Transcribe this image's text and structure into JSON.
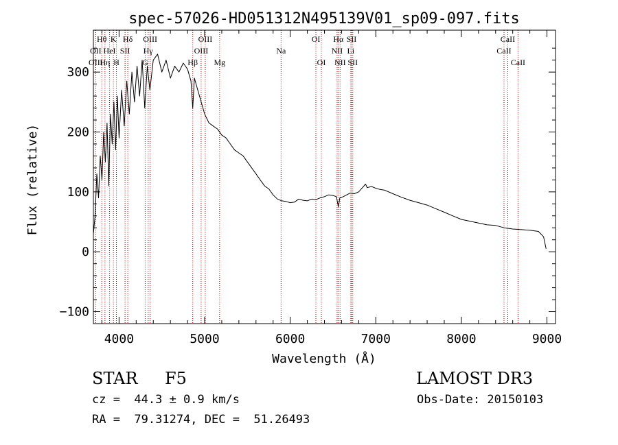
{
  "chart_data": {
    "type": "line",
    "title": "spec-57026-HD051312N495139V01_sp09-097.fits",
    "xlabel": "Wavelength (Å)",
    "ylabel": "Flux (relative)",
    "xlim": [
      3700,
      9100
    ],
    "ylim": [
      -120,
      370
    ],
    "xticks": [
      4000,
      5000,
      6000,
      7000,
      8000,
      9000
    ],
    "xtick_labels": [
      "4000",
      "5000",
      "6000",
      "7000",
      "8000",
      "9000"
    ],
    "yticks": [
      -100,
      0,
      100,
      200,
      300
    ],
    "ytick_labels": [
      "−100",
      "0",
      "100",
      "200",
      "300"
    ],
    "series": [
      {
        "name": "flux",
        "x": [
          3700,
          3720,
          3740,
          3760,
          3780,
          3800,
          3820,
          3840,
          3860,
          3880,
          3900,
          3920,
          3940,
          3960,
          3980,
          4000,
          4030,
          4060,
          4090,
          4120,
          4150,
          4180,
          4210,
          4240,
          4270,
          4300,
          4330,
          4360,
          4400,
          4450,
          4500,
          4550,
          4600,
          4650,
          4700,
          4750,
          4800,
          4840,
          4861,
          4880,
          4920,
          4960,
          5000,
          5050,
          5100,
          5150,
          5200,
          5250,
          5300,
          5350,
          5400,
          5450,
          5500,
          5550,
          5600,
          5650,
          5700,
          5750,
          5800,
          5850,
          5900,
          5950,
          6000,
          6050,
          6100,
          6150,
          6200,
          6250,
          6300,
          6350,
          6400,
          6450,
          6500,
          6540,
          6563,
          6580,
          6620,
          6660,
          6700,
          6750,
          6800,
          6850,
          6880,
          6900,
          6950,
          7000,
          7050,
          7100,
          7200,
          7300,
          7400,
          7500,
          7600,
          7700,
          7800,
          7900,
          8000,
          8100,
          8200,
          8300,
          8400,
          8500,
          8600,
          8700,
          8800,
          8900,
          8960,
          8990
        ],
        "y": [
          30,
          60,
          130,
          90,
          160,
          120,
          200,
          150,
          215,
          110,
          230,
          180,
          250,
          170,
          260,
          190,
          270,
          210,
          285,
          230,
          300,
          250,
          310,
          260,
          320,
          240,
          310,
          270,
          320,
          330,
          300,
          320,
          290,
          310,
          300,
          315,
          305,
          285,
          240,
          290,
          270,
          250,
          230,
          215,
          210,
          205,
          195,
          190,
          180,
          170,
          165,
          160,
          150,
          140,
          130,
          120,
          110,
          105,
          95,
          88,
          85,
          84,
          82,
          83,
          88,
          86,
          85,
          88,
          87,
          90,
          92,
          95,
          94,
          92,
          75,
          90,
          92,
          95,
          98,
          97,
          100,
          108,
          113,
          107,
          109,
          106,
          104,
          103,
          97,
          91,
          86,
          82,
          78,
          72,
          66,
          60,
          54,
          51,
          48,
          45,
          44,
          40,
          38,
          37,
          36,
          34,
          25,
          5
        ]
      }
    ],
    "line_markers": [
      {
        "label": "Hθ",
        "wavelength": 3798,
        "row": 1
      },
      {
        "label": "OII",
        "wavelength": 3727,
        "row": 2
      },
      {
        "label": "OIII",
        "wavelength": 3727,
        "row": 3
      },
      {
        "label": "Hη",
        "wavelength": 3835,
        "row": 3
      },
      {
        "label": "K",
        "wavelength": 3934,
        "row": 1
      },
      {
        "label": "HeI",
        "wavelength": 3889,
        "row": 2
      },
      {
        "label": "H",
        "wavelength": 3969,
        "row": 3
      },
      {
        "label": "SII",
        "wavelength": 4070,
        "row": 2
      },
      {
        "label": "Hδ",
        "wavelength": 4102,
        "row": 1
      },
      {
        "label": "OIII",
        "wavelength": 4363,
        "row": 1
      },
      {
        "label": "Hγ",
        "wavelength": 4340,
        "row": 2
      },
      {
        "label": "G",
        "wavelength": 4305,
        "row": 3
      },
      {
        "label": "OIII",
        "wavelength": 5007,
        "row": 1
      },
      {
        "label": "OIII",
        "wavelength": 4959,
        "row": 2
      },
      {
        "label": "Hβ",
        "wavelength": 4861,
        "row": 3
      },
      {
        "label": "Mg",
        "wavelength": 5175,
        "row": 3
      },
      {
        "label": "Na",
        "wavelength": 5893,
        "row": 2
      },
      {
        "label": "OI",
        "wavelength": 6300,
        "row": 1
      },
      {
        "label": "OI",
        "wavelength": 6364,
        "row": 3
      },
      {
        "label": "Hα",
        "wavelength": 6563,
        "row": 1
      },
      {
        "label": "NII",
        "wavelength": 6548,
        "row": 2
      },
      {
        "label": "NII",
        "wavelength": 6583,
        "row": 3
      },
      {
        "label": "SII",
        "wavelength": 6716,
        "row": 1
      },
      {
        "label": "Li",
        "wavelength": 6708,
        "row": 2
      },
      {
        "label": "SII",
        "wavelength": 6731,
        "row": 3
      },
      {
        "label": "CaII",
        "wavelength": 8542,
        "row": 1
      },
      {
        "label": "CaII",
        "wavelength": 8498,
        "row": 2
      },
      {
        "label": "CaII",
        "wavelength": 8662,
        "row": 3
      }
    ]
  },
  "info": {
    "object_class": "STAR",
    "subclass": "F5",
    "survey": "LAMOST DR3",
    "redshift_line": "cz =  44.3 ± 0.9 km/s",
    "obs_date": "Obs-Date: 20150103",
    "coords": "RA =  79.31274, DEC =  51.26493"
  },
  "colors": {
    "line": "#000000",
    "marker": "#c00000",
    "axis": "#000000",
    "background": "#ffffff"
  }
}
